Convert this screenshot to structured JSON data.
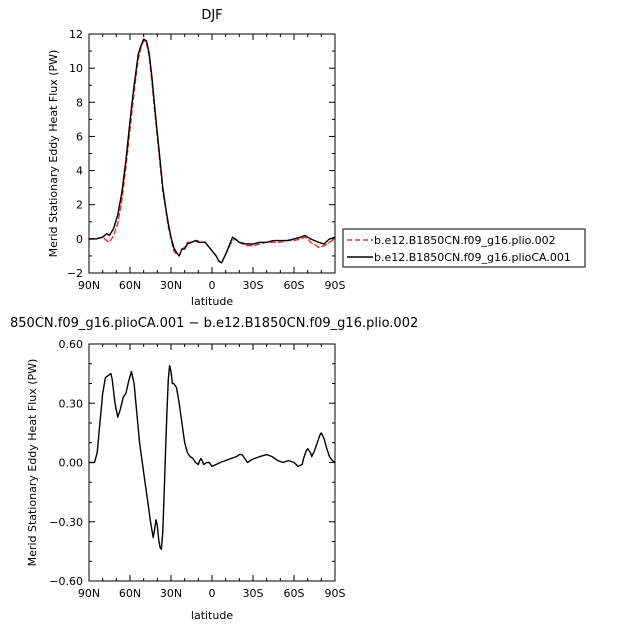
{
  "chart_data": [
    {
      "type": "line",
      "title": "DJF",
      "xlabel": "latitude",
      "ylabel": "Merid Stationary Eddy Heat Flux (PW)",
      "xlim": [
        90,
        -90
      ],
      "ylim": [
        -2,
        12
      ],
      "x_ticks": [
        90,
        60,
        30,
        0,
        -30,
        -60,
        -90
      ],
      "x_tick_labels": [
        "90N",
        "60N",
        "30N",
        "0",
        "30S",
        "60S",
        "90S"
      ],
      "y_ticks": [
        -2,
        0,
        2,
        4,
        6,
        8,
        10,
        12
      ],
      "y_tick_labels": [
        "−2",
        "0",
        "2",
        "4",
        "6",
        "8",
        "10",
        "12"
      ],
      "legend_position": "right",
      "series": [
        {
          "name": "b.e12.B1850CN.f09_g16.plio.002",
          "color": "#e8302e",
          "style": "dashed",
          "points": [
            [
              90,
              0
            ],
            [
              85,
              0
            ],
            [
              80,
              0.1
            ],
            [
              77,
              -0.1
            ],
            [
              75,
              -0.2
            ],
            [
              72,
              0.2
            ],
            [
              69,
              0.9
            ],
            [
              66,
              2.2
            ],
            [
              63,
              4.2
            ],
            [
              60,
              6.4
            ],
            [
              57,
              8.6
            ],
            [
              54,
              10.5
            ],
            [
              52,
              11.2
            ],
            [
              50,
              11.6
            ],
            [
              48,
              11.5
            ],
            [
              46,
              10.7
            ],
            [
              44,
              9.2
            ],
            [
              42,
              7.5
            ],
            [
              40,
              6.0
            ],
            [
              38,
              4.3
            ],
            [
              36,
              2.8
            ],
            [
              34,
              1.8
            ],
            [
              32,
              0.7
            ],
            [
              30,
              0.0
            ],
            [
              28,
              -0.7
            ],
            [
              26,
              -0.9
            ],
            [
              24,
              -1.0
            ],
            [
              22,
              -0.6
            ],
            [
              20,
              -0.5
            ],
            [
              18,
              -0.2
            ],
            [
              15,
              -0.2
            ],
            [
              12,
              -0.1
            ],
            [
              10,
              -0.1
            ],
            [
              8,
              -0.2
            ],
            [
              5,
              -0.2
            ],
            [
              3,
              -0.4
            ],
            [
              0,
              -0.7
            ],
            [
              -3,
              -1.0
            ],
            [
              -5,
              -1.3
            ],
            [
              -7,
              -1.4
            ],
            [
              -10,
              -0.9
            ],
            [
              -13,
              -0.4
            ],
            [
              -15,
              -0.1
            ],
            [
              -17,
              0.0
            ],
            [
              -20,
              -0.2
            ],
            [
              -25,
              -0.4
            ],
            [
              -30,
              -0.4
            ],
            [
              -35,
              -0.3
            ],
            [
              -40,
              -0.2
            ],
            [
              -45,
              -0.2
            ],
            [
              -50,
              -0.2
            ],
            [
              -55,
              -0.1
            ],
            [
              -60,
              -0.1
            ],
            [
              -65,
              0.0
            ],
            [
              -68,
              0.1
            ],
            [
              -70,
              0.0
            ],
            [
              -72,
              -0.2
            ],
            [
              -75,
              -0.3
            ],
            [
              -78,
              -0.5
            ],
            [
              -82,
              -0.4
            ],
            [
              -86,
              -0.2
            ],
            [
              -90,
              0
            ]
          ]
        },
        {
          "name": "b.e12.B1850CN.f09_g16.plioCA.001",
          "color": "#000000",
          "style": "solid",
          "points": [
            [
              90,
              0
            ],
            [
              85,
              0
            ],
            [
              80,
              0.1
            ],
            [
              77,
              0.3
            ],
            [
              75,
              0.2
            ],
            [
              72,
              0.6
            ],
            [
              69,
              1.4
            ],
            [
              66,
              2.7
            ],
            [
              63,
              4.6
            ],
            [
              60,
              6.9
            ],
            [
              57,
              9.0
            ],
            [
              54,
              10.8
            ],
            [
              52,
              11.3
            ],
            [
              50,
              11.7
            ],
            [
              48,
              11.6
            ],
            [
              46,
              10.9
            ],
            [
              44,
              9.5
            ],
            [
              42,
              7.8
            ],
            [
              40,
              6.2
            ],
            [
              38,
              4.6
            ],
            [
              36,
              3.0
            ],
            [
              34,
              1.9
            ],
            [
              32,
              0.9
            ],
            [
              30,
              0.1
            ],
            [
              28,
              -0.5
            ],
            [
              26,
              -0.8
            ],
            [
              24,
              -1.0
            ],
            [
              22,
              -0.6
            ],
            [
              20,
              -0.6
            ],
            [
              18,
              -0.3
            ],
            [
              15,
              -0.2
            ],
            [
              12,
              -0.1
            ],
            [
              10,
              -0.2
            ],
            [
              8,
              -0.2
            ],
            [
              5,
              -0.2
            ],
            [
              3,
              -0.4
            ],
            [
              0,
              -0.7
            ],
            [
              -3,
              -1.0
            ],
            [
              -5,
              -1.3
            ],
            [
              -7,
              -1.4
            ],
            [
              -10,
              -0.9
            ],
            [
              -13,
              -0.3
            ],
            [
              -15,
              0.1
            ],
            [
              -17,
              0.0
            ],
            [
              -20,
              -0.2
            ],
            [
              -25,
              -0.3
            ],
            [
              -30,
              -0.3
            ],
            [
              -35,
              -0.2
            ],
            [
              -40,
              -0.2
            ],
            [
              -45,
              -0.1
            ],
            [
              -50,
              -0.1
            ],
            [
              -55,
              -0.1
            ],
            [
              -60,
              0.0
            ],
            [
              -65,
              0.1
            ],
            [
              -68,
              0.2
            ],
            [
              -70,
              0.1
            ],
            [
              -72,
              0.0
            ],
            [
              -75,
              -0.1
            ],
            [
              -78,
              -0.2
            ],
            [
              -82,
              -0.3
            ],
            [
              -86,
              0.0
            ],
            [
              -90,
              0.1
            ]
          ]
        }
      ]
    },
    {
      "type": "line",
      "title": "850CN.f09_g16.plioCA.001 − b.e12.B1850CN.f09_g16.plio.002",
      "xlabel": "latitude",
      "ylabel": "Merid Stationary Eddy Heat Flux (PW)",
      "xlim": [
        90,
        -90
      ],
      "ylim": [
        -0.6,
        0.6
      ],
      "x_ticks": [
        90,
        60,
        30,
        0,
        -30,
        -60,
        -90
      ],
      "x_tick_labels": [
        "90N",
        "60N",
        "30N",
        "0",
        "30S",
        "60S",
        "90S"
      ],
      "y_ticks": [
        -0.6,
        -0.3,
        0,
        0.3,
        0.6
      ],
      "y_tick_labels": [
        "−0.60",
        "−0.30",
        "0.00",
        "0.30",
        "0.60"
      ],
      "series": [
        {
          "color": "#000000",
          "style": "solid",
          "points": [
            [
              90,
              0
            ],
            [
              86,
              0
            ],
            [
              84,
              0.05
            ],
            [
              82,
              0.2
            ],
            [
              80,
              0.35
            ],
            [
              78,
              0.43
            ],
            [
              76,
              0.44
            ],
            [
              74,
              0.45
            ],
            [
              73,
              0.42
            ],
            [
              71,
              0.3
            ],
            [
              69,
              0.23
            ],
            [
              67,
              0.27
            ],
            [
              65,
              0.33
            ],
            [
              63,
              0.35
            ],
            [
              61,
              0.41
            ],
            [
              59,
              0.46
            ],
            [
              57,
              0.4
            ],
            [
              55,
              0.25
            ],
            [
              53,
              0.1
            ],
            [
              51,
              0
            ],
            [
              49,
              -0.1
            ],
            [
              47,
              -0.2
            ],
            [
              45,
              -0.3
            ],
            [
              43,
              -0.38
            ],
            [
              42,
              -0.34
            ],
            [
              41,
              -0.29
            ],
            [
              40,
              -0.32
            ],
            [
              39,
              -0.39
            ],
            [
              38,
              -0.43
            ],
            [
              37,
              -0.44
            ],
            [
              36,
              -0.35
            ],
            [
              35,
              -0.15
            ],
            [
              34,
              0.05
            ],
            [
              33,
              0.25
            ],
            [
              32,
              0.42
            ],
            [
              31,
              0.49
            ],
            [
              30,
              0.46
            ],
            [
              29,
              0.4
            ],
            [
              28,
              0.4
            ],
            [
              26,
              0.38
            ],
            [
              24,
              0.3
            ],
            [
              22,
              0.2
            ],
            [
              20,
              0.1
            ],
            [
              18,
              0.05
            ],
            [
              16,
              0.03
            ],
            [
              14,
              0.02
            ],
            [
              12,
              0
            ],
            [
              10,
              -0.01
            ],
            [
              9,
              0.01
            ],
            [
              8,
              0.02
            ],
            [
              6,
              -0.01
            ],
            [
              4,
              0
            ],
            [
              2,
              0
            ],
            [
              0,
              -0.02
            ],
            [
              -3,
              -0.01
            ],
            [
              -6,
              0
            ],
            [
              -10,
              0.01
            ],
            [
              -14,
              0.02
            ],
            [
              -18,
              0.03
            ],
            [
              -20,
              0.04
            ],
            [
              -22,
              0.04
            ],
            [
              -24,
              0.02
            ],
            [
              -26,
              0
            ],
            [
              -28,
              0.01
            ],
            [
              -31,
              0.02
            ],
            [
              -35,
              0.03
            ],
            [
              -40,
              0.04
            ],
            [
              -44,
              0.03
            ],
            [
              -48,
              0.01
            ],
            [
              -52,
              0
            ],
            [
              -56,
              0.01
            ],
            [
              -60,
              0
            ],
            [
              -63,
              -0.02
            ],
            [
              -66,
              -0.01
            ],
            [
              -67,
              0.02
            ],
            [
              -69,
              0.06
            ],
            [
              -70,
              0.07
            ],
            [
              -72,
              0.05
            ],
            [
              -73,
              0.03
            ],
            [
              -75,
              0.06
            ],
            [
              -77,
              0.1
            ],
            [
              -79,
              0.14
            ],
            [
              -80,
              0.15
            ],
            [
              -82,
              0.12
            ],
            [
              -84,
              0.07
            ],
            [
              -86,
              0.03
            ],
            [
              -88,
              0.01
            ],
            [
              -90,
              0
            ]
          ]
        }
      ]
    }
  ]
}
